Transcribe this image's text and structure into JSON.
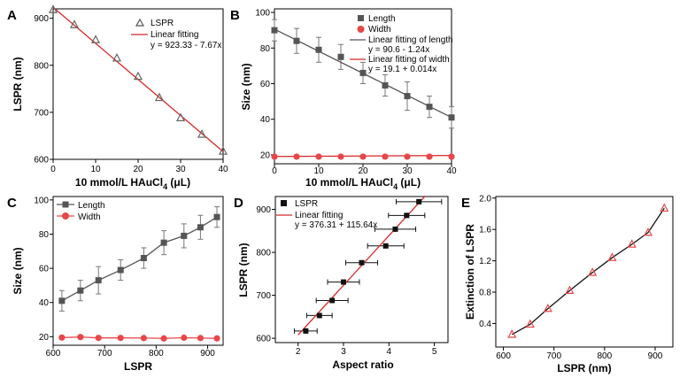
{
  "chart_data": [
    {
      "panel_label": "A",
      "type": "scatter",
      "x_min": 0,
      "x_max": 40,
      "y_min": 600,
      "y_max": 920,
      "xticks": [
        "0",
        "10",
        "20",
        "30",
        "40"
      ],
      "yticks": [
        "600",
        "700",
        "800",
        "900"
      ],
      "xlabel": {
        "pre": "10 mmol/L HAuCl",
        "sub": "4",
        "post": " (μL)"
      },
      "ylabel": "LSPR (nm)",
      "x": [
        0,
        5,
        10,
        15,
        20,
        25,
        30,
        35,
        40
      ],
      "y": [
        918,
        886,
        854,
        815,
        776,
        731,
        688,
        653,
        617
      ],
      "fit_x": [
        0,
        40
      ],
      "fit_y": [
        923.33,
        616.53
      ],
      "legend": [
        {
          "label": "LSPR"
        },
        {
          "label": "Linear fitting"
        },
        {
          "label": "y = 923.33 - 7.67x"
        }
      ],
      "colors": {
        "marker": "#666666",
        "fit": "#d62728"
      }
    },
    {
      "panel_label": "B",
      "type": "scatter",
      "x_min": 0,
      "x_max": 40,
      "y_min": 15,
      "y_max": 102,
      "xticks": [
        "0",
        "10",
        "20",
        "30",
        "40"
      ],
      "yticks": [
        "20",
        "40",
        "60",
        "80",
        "100"
      ],
      "xlabel": {
        "pre": "10 mmol/L HAuCl",
        "sub": "4",
        "post": " (μL)"
      },
      "ylabel": "Size (nm)",
      "x": [
        0,
        5,
        10,
        15,
        20,
        25,
        30,
        35,
        40
      ],
      "series": [
        {
          "name": "Length",
          "values": [
            90,
            84,
            79,
            75,
            66,
            59,
            53,
            47,
            41
          ],
          "err": [
            6,
            7,
            7,
            7,
            6,
            6,
            8,
            6,
            6
          ]
        },
        {
          "name": "Width",
          "values": [
            19,
            19,
            19,
            19,
            19,
            19,
            19,
            19,
            19
          ]
        }
      ],
      "fits": [
        {
          "name": "Linear fitting of length",
          "x": [
            0,
            40
          ],
          "y": [
            90.6,
            41.0
          ]
        },
        {
          "name": "Linear fitting of width",
          "x": [
            0,
            40
          ],
          "y": [
            19.1,
            19.66
          ]
        }
      ],
      "legend": [
        {
          "label": "Length"
        },
        {
          "label": "Width"
        },
        {
          "label": "Linear fitting of length"
        },
        {
          "label": "y = 90.6 - 1.24x"
        },
        {
          "label": "Linear fitting of width"
        },
        {
          "label": "y = 19.1 + 0.014x"
        }
      ],
      "colors": {
        "length": "#555555",
        "width": "#e8474a",
        "fit_length": "#555555",
        "fit_width": "#d62728"
      }
    },
    {
      "panel_label": "C",
      "type": "line",
      "x_min": 600,
      "x_max": 930,
      "y_min": 15,
      "y_max": 102,
      "xticks": [
        "600",
        "700",
        "800",
        "900"
      ],
      "yticks": [
        "20",
        "40",
        "60",
        "80",
        "100"
      ],
      "xlabel": "LSPR",
      "ylabel": "Size (nm)",
      "x": [
        617,
        653,
        688,
        731,
        776,
        815,
        854,
        886,
        918
      ],
      "series": [
        {
          "name": "Length",
          "values": [
            41,
            47,
            53,
            59,
            66,
            75,
            79,
            84,
            90
          ],
          "err": [
            6,
            6,
            8,
            6,
            6,
            7,
            7,
            7,
            6
          ]
        },
        {
          "name": "Width",
          "values": [
            19.5,
            19.8,
            19.3,
            19.3,
            19.2,
            19,
            19.4,
            19.2,
            19
          ]
        }
      ],
      "legend": [
        {
          "label": "Length"
        },
        {
          "label": "Width"
        }
      ],
      "colors": {
        "length": "#555555",
        "width": "#e8474a"
      }
    },
    {
      "panel_label": "D",
      "type": "scatter",
      "x_min": 1.5,
      "x_max": 5.3,
      "y_min": 590,
      "y_max": 930,
      "xticks": [
        "2",
        "3",
        "4",
        "5"
      ],
      "yticks": [
        "600",
        "700",
        "800",
        "900"
      ],
      "xlabel": "Aspect ratio",
      "ylabel": "LSPR (nm)",
      "x": [
        2.17,
        2.47,
        2.75,
        3.0,
        3.4,
        3.93,
        4.14,
        4.39,
        4.66
      ],
      "y": [
        617,
        653,
        688,
        731,
        776,
        815,
        854,
        886,
        918
      ],
      "xerr": [
        0.25,
        0.28,
        0.35,
        0.35,
        0.35,
        0.4,
        0.45,
        0.4,
        0.5
      ],
      "fit_x": [
        2.0,
        4.8
      ],
      "fit_y": [
        607.6,
        931.4
      ],
      "legend": [
        {
          "label": "LSPR"
        },
        {
          "label": "Linear fitting"
        },
        {
          "label": "y = 376.31 + 115.64x"
        }
      ],
      "colors": {
        "marker": "#111111",
        "fit": "#d62728"
      }
    },
    {
      "panel_label": "E",
      "type": "line",
      "x_min": 585,
      "x_max": 935,
      "y_min": 0.1,
      "y_max": 2.02,
      "xticks": [
        "600",
        "700",
        "800",
        "900"
      ],
      "yticks": [
        "0.4",
        "0.8",
        "1.2",
        "1.6",
        "2.0"
      ],
      "xlabel": "LSPR (nm)",
      "ylabel": "Extinction of LSPR",
      "x": [
        617,
        653,
        688,
        731,
        776,
        815,
        854,
        886,
        918
      ],
      "y": [
        0.26,
        0.39,
        0.59,
        0.82,
        1.05,
        1.24,
        1.41,
        1.56,
        1.87
      ],
      "colors": {
        "marker": "#e8474a",
        "line": "#111111"
      }
    }
  ]
}
